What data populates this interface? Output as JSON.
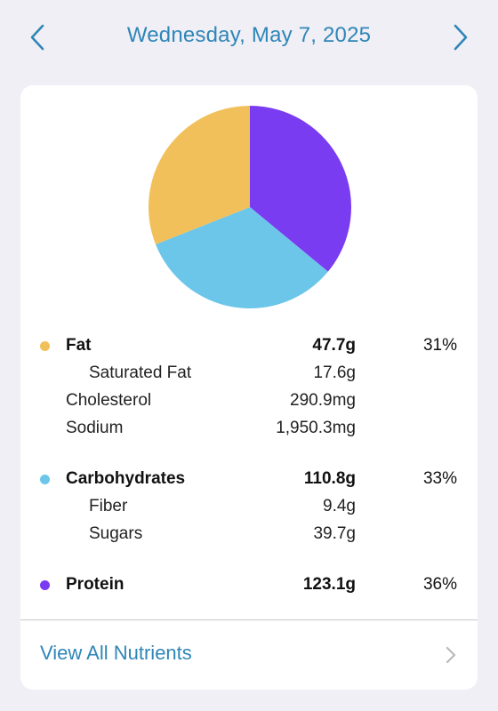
{
  "header": {
    "title": "Wednesday, May 7, 2025",
    "prev_icon": "chevron-left-icon",
    "next_icon": "chevron-right-icon"
  },
  "colors": {
    "accent": "#2f86b7",
    "fat": "#f2c05a",
    "carbohydrates": "#6cc6ea",
    "protein": "#7a3cf0",
    "background": "#f0eff5"
  },
  "macros": {
    "fat": {
      "label": "Fat",
      "value": "47.7g",
      "percent": "31%",
      "details": [
        {
          "label": "Saturated Fat",
          "value": "17.6g",
          "indented": true
        },
        {
          "label": "Cholesterol",
          "value": "290.9mg",
          "indented": false
        },
        {
          "label": "Sodium",
          "value": "1,950.3mg",
          "indented": false
        }
      ]
    },
    "carbohydrates": {
      "label": "Carbohydrates",
      "value": "110.8g",
      "percent": "33%",
      "details": [
        {
          "label": "Fiber",
          "value": "9.4g",
          "indented": true
        },
        {
          "label": "Sugars",
          "value": "39.7g",
          "indented": true
        }
      ]
    },
    "protein": {
      "label": "Protein",
      "value": "123.1g",
      "percent": "36%"
    }
  },
  "chart_data": {
    "type": "pie",
    "categories": [
      "Protein",
      "Carbohydrates",
      "Fat"
    ],
    "values": [
      36,
      33,
      31
    ],
    "colors": [
      "#7a3cf0",
      "#6cc6ea",
      "#f2c05a"
    ]
  },
  "footer": {
    "link_label": "View All Nutrients",
    "chevron_icon": "chevron-right-icon"
  }
}
